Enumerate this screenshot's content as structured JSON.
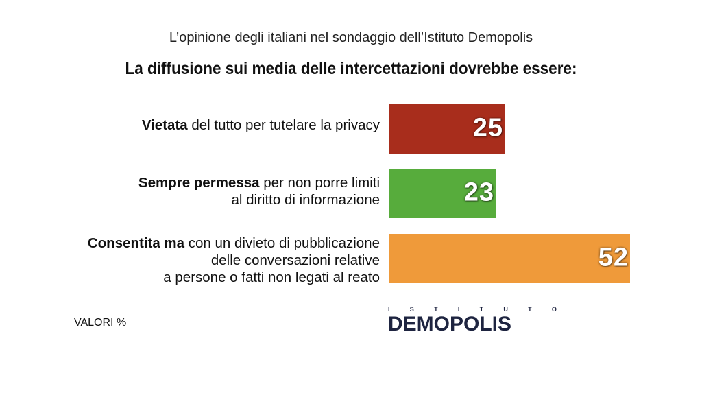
{
  "subtitle": "L’opinione degli italiani nel sondaggio dell’Istituto Demopolis",
  "title": "La diffusione sui media delle intercettazioni dovrebbe essere:",
  "units_label": "VALORI %",
  "logo": {
    "top_text": [
      "I",
      "S",
      "T",
      "I",
      "T",
      "U",
      "T",
      "O"
    ],
    "main_text": "DEMOPOLIS"
  },
  "chart_data": {
    "type": "bar",
    "orientation": "horizontal",
    "title": "La diffusione sui media delle intercettazioni dovrebbe essere:",
    "categories": [
      "Vietata del tutto per tutelare la privacy",
      "Sempre permessa per non porre limiti al diritto di informazione",
      "Consentita ma con un divieto di pubblicazione delle conversazioni relative a persone o fatti non legati al reato"
    ],
    "labels": [
      {
        "bold": "Vietata",
        "rest": [
          "del tutto per tutelare la privacy"
        ]
      },
      {
        "bold": "Sempre permessa",
        "rest": [
          "per non porre limiti",
          "al diritto di informazione"
        ]
      },
      {
        "bold": "Consentita ma",
        "rest": [
          "con un divieto di pubblicazione",
          "delle conversazioni relative",
          "a persone o fatti non legati al reato"
        ]
      }
    ],
    "values": [
      25,
      23,
      52
    ],
    "value_labels": [
      "25",
      "23",
      "52"
    ],
    "colors": [
      "#a82d1c",
      "#57ac3c",
      "#ef9a3a"
    ],
    "xlim": [
      0,
      52
    ],
    "grid": false,
    "legend": "none"
  }
}
